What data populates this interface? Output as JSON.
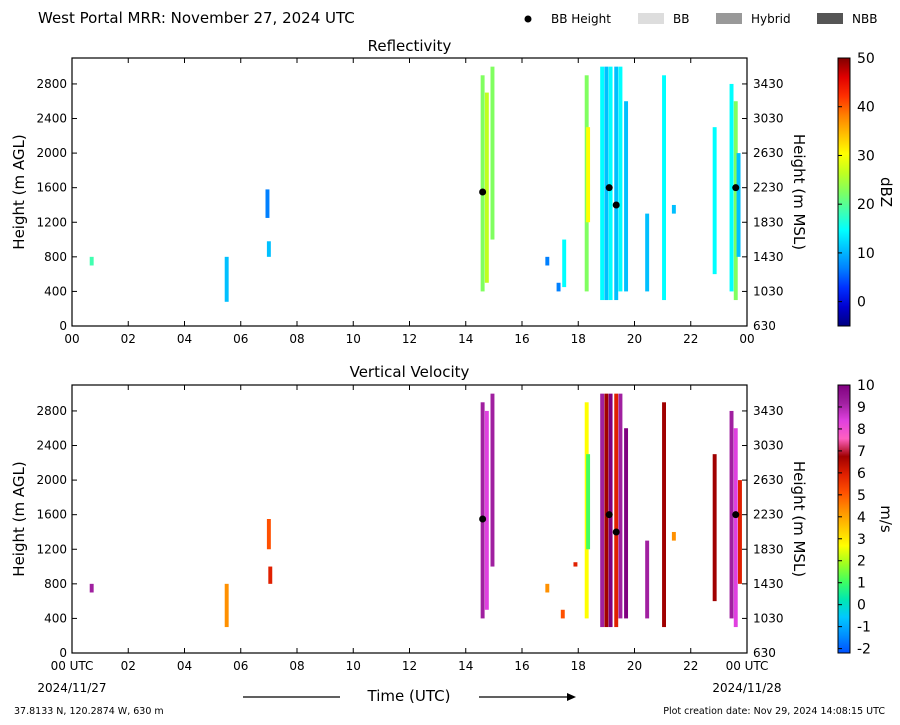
{
  "header": {
    "title": "West Portal MRR:  November 27, 2024 UTC",
    "legend": [
      {
        "label": "BB Height",
        "kind": "dot",
        "color": "#000000"
      },
      {
        "label": "BB",
        "kind": "swatch",
        "color": "#dddddd"
      },
      {
        "label": "Hybrid",
        "kind": "swatch",
        "color": "#999999"
      },
      {
        "label": "NBB",
        "kind": "swatch",
        "color": "#555555"
      }
    ]
  },
  "footer": {
    "coords": "37.8133 N, 120.2874 W, 630 m",
    "creation": "Plot creation date: Nov 29, 2024 14:08:15 UTC",
    "xlabel": "Time (UTC)",
    "date_start": "2024/11/27",
    "date_end": "2024/11/28"
  },
  "colors": {
    "reflectivity_scale": [
      "#000080",
      "#0000d0",
      "#0030ff",
      "#0080ff",
      "#00c0ff",
      "#00ffff",
      "#40ffb0",
      "#80ff60",
      "#c0ff20",
      "#ffff00",
      "#ffc000",
      "#ff8000",
      "#ff3000",
      "#e00000",
      "#800000"
    ],
    "velocity_scale": [
      "#0050ff",
      "#0090ff",
      "#00c8ff",
      "#00e8b0",
      "#40ff60",
      "#a0ff20",
      "#ffff00",
      "#ffc800",
      "#ff9000",
      "#ff5000",
      "#e02000",
      "#a00000",
      "#ff60c0",
      "#e040e0",
      "#a020a0",
      "#800080"
    ]
  },
  "chart_data": [
    {
      "type": "heatmap",
      "title": "Reflectivity",
      "ylabel": "Height (m AGL)",
      "y2label": "Height (m MSL)",
      "colorbar_label": "dBZ",
      "xlim": [
        0,
        24
      ],
      "ylim": [
        0,
        3100
      ],
      "xticks": [
        "00",
        "02",
        "04",
        "06",
        "08",
        "10",
        "12",
        "14",
        "16",
        "18",
        "20",
        "22",
        "00"
      ],
      "yticks": [
        0,
        400,
        800,
        1200,
        1600,
        2000,
        2400,
        2800
      ],
      "y2ticks": [
        "630",
        "1030",
        "1430",
        "1830",
        "2230",
        "2630",
        "3030",
        "3430"
      ],
      "colorbar_range": [
        -5,
        50
      ],
      "colorbar_ticks": [
        0,
        10,
        20,
        30,
        40,
        50
      ],
      "bb_height": [
        {
          "x": 14.6,
          "y": 1550
        },
        {
          "x": 19.1,
          "y": 1600
        },
        {
          "x": 19.35,
          "y": 1400
        },
        {
          "x": 23.6,
          "y": 1600
        }
      ],
      "echo_columns": [
        {
          "x": 0.7,
          "y0": 700,
          "y1": 800,
          "value": 20
        },
        {
          "x": 5.5,
          "y0": 280,
          "y1": 800,
          "value": 10
        },
        {
          "x": 6.95,
          "y0": 1250,
          "y1": 1580,
          "value": 8
        },
        {
          "x": 7.0,
          "y0": 800,
          "y1": 980,
          "value": 12
        },
        {
          "x": 14.6,
          "y0": 400,
          "y1": 2900,
          "value": 22
        },
        {
          "x": 14.75,
          "y0": 500,
          "y1": 2700,
          "value": 28
        },
        {
          "x": 14.95,
          "y0": 1000,
          "y1": 3000,
          "value": 24
        },
        {
          "x": 16.9,
          "y0": 700,
          "y1": 800,
          "value": 8
        },
        {
          "x": 17.3,
          "y0": 400,
          "y1": 500,
          "value": 5
        },
        {
          "x": 17.5,
          "y0": 450,
          "y1": 1000,
          "value": 14
        },
        {
          "x": 18.3,
          "y0": 400,
          "y1": 2900,
          "value": 22
        },
        {
          "x": 18.35,
          "y0": 1200,
          "y1": 2300,
          "value": 30
        },
        {
          "x": 18.85,
          "y0": 300,
          "y1": 3000,
          "value": 14
        },
        {
          "x": 19.0,
          "y0": 300,
          "y1": 3000,
          "value": 12
        },
        {
          "x": 19.15,
          "y0": 300,
          "y1": 3000,
          "value": 16
        },
        {
          "x": 19.35,
          "y0": 300,
          "y1": 3000,
          "value": 12
        },
        {
          "x": 19.5,
          "y0": 400,
          "y1": 3000,
          "value": 14
        },
        {
          "x": 19.7,
          "y0": 400,
          "y1": 2600,
          "value": 12
        },
        {
          "x": 20.45,
          "y0": 400,
          "y1": 1300,
          "value": 10
        },
        {
          "x": 21.05,
          "y0": 300,
          "y1": 2900,
          "value": 13
        },
        {
          "x": 21.4,
          "y0": 1300,
          "y1": 1400,
          "value": 10
        },
        {
          "x": 22.85,
          "y0": 600,
          "y1": 2300,
          "value": 14
        },
        {
          "x": 23.45,
          "y0": 400,
          "y1": 2800,
          "value": 16
        },
        {
          "x": 23.6,
          "y0": 300,
          "y1": 2600,
          "value": 22
        },
        {
          "x": 23.7,
          "y0": 800,
          "y1": 2000,
          "value": 12
        }
      ]
    },
    {
      "type": "heatmap",
      "title": "Vertical Velocity",
      "ylabel": "Height (m AGL)",
      "y2label": "Height (m MSL)",
      "colorbar_label": "m/s",
      "xlim": [
        0,
        24
      ],
      "ylim": [
        0,
        3100
      ],
      "xticks": [
        "00 UTC",
        "02",
        "04",
        "06",
        "08",
        "10",
        "12",
        "14",
        "16",
        "18",
        "20",
        "22",
        "00 UTC"
      ],
      "yticks": [
        0,
        400,
        800,
        1200,
        1600,
        2000,
        2400,
        2800
      ],
      "y2ticks": [
        "630",
        "1030",
        "1430",
        "1830",
        "2230",
        "2630",
        "3030",
        "3430"
      ],
      "colorbar_range": [
        -2.2,
        10
      ],
      "colorbar_ticks": [
        -2,
        -1,
        0,
        1,
        2,
        3,
        4,
        5,
        6,
        7,
        8,
        9,
        10
      ],
      "bb_height": [
        {
          "x": 14.6,
          "y": 1550
        },
        {
          "x": 19.1,
          "y": 1600
        },
        {
          "x": 19.35,
          "y": 1400
        },
        {
          "x": 23.6,
          "y": 1600
        }
      ],
      "echo_columns": [
        {
          "x": 0.7,
          "y0": 700,
          "y1": 800,
          "value": 9
        },
        {
          "x": 5.5,
          "y0": 300,
          "y1": 800,
          "value": 4
        },
        {
          "x": 7.0,
          "y0": 1200,
          "y1": 1550,
          "value": 5
        },
        {
          "x": 7.05,
          "y0": 800,
          "y1": 1000,
          "value": 6
        },
        {
          "x": 14.6,
          "y0": 400,
          "y1": 2900,
          "value": 9
        },
        {
          "x": 14.75,
          "y0": 500,
          "y1": 2800,
          "value": 8
        },
        {
          "x": 14.95,
          "y0": 1000,
          "y1": 3000,
          "value": 9
        },
        {
          "x": 16.9,
          "y0": 700,
          "y1": 800,
          "value": 4
        },
        {
          "x": 17.45,
          "y0": 400,
          "y1": 500,
          "value": 5
        },
        {
          "x": 17.9,
          "y0": 1000,
          "y1": 1050,
          "value": 6
        },
        {
          "x": 18.3,
          "y0": 400,
          "y1": 2900,
          "value": 3
        },
        {
          "x": 18.35,
          "y0": 1200,
          "y1": 2300,
          "value": 1
        },
        {
          "x": 18.85,
          "y0": 300,
          "y1": 3000,
          "value": 9
        },
        {
          "x": 19.0,
          "y0": 300,
          "y1": 3000,
          "value": 7
        },
        {
          "x": 19.15,
          "y0": 300,
          "y1": 3000,
          "value": 10
        },
        {
          "x": 19.35,
          "y0": 300,
          "y1": 3000,
          "value": 6
        },
        {
          "x": 19.5,
          "y0": 400,
          "y1": 3000,
          "value": 9
        },
        {
          "x": 19.7,
          "y0": 400,
          "y1": 2600,
          "value": 10
        },
        {
          "x": 20.45,
          "y0": 400,
          "y1": 1300,
          "value": 9
        },
        {
          "x": 21.05,
          "y0": 300,
          "y1": 2900,
          "value": 7
        },
        {
          "x": 21.4,
          "y0": 1300,
          "y1": 1400,
          "value": 4
        },
        {
          "x": 22.85,
          "y0": 600,
          "y1": 2300,
          "value": 7
        },
        {
          "x": 23.45,
          "y0": 400,
          "y1": 2800,
          "value": 9
        },
        {
          "x": 23.6,
          "y0": 300,
          "y1": 2600,
          "value": 8
        },
        {
          "x": 23.75,
          "y0": 800,
          "y1": 2000,
          "value": 6
        }
      ]
    }
  ]
}
